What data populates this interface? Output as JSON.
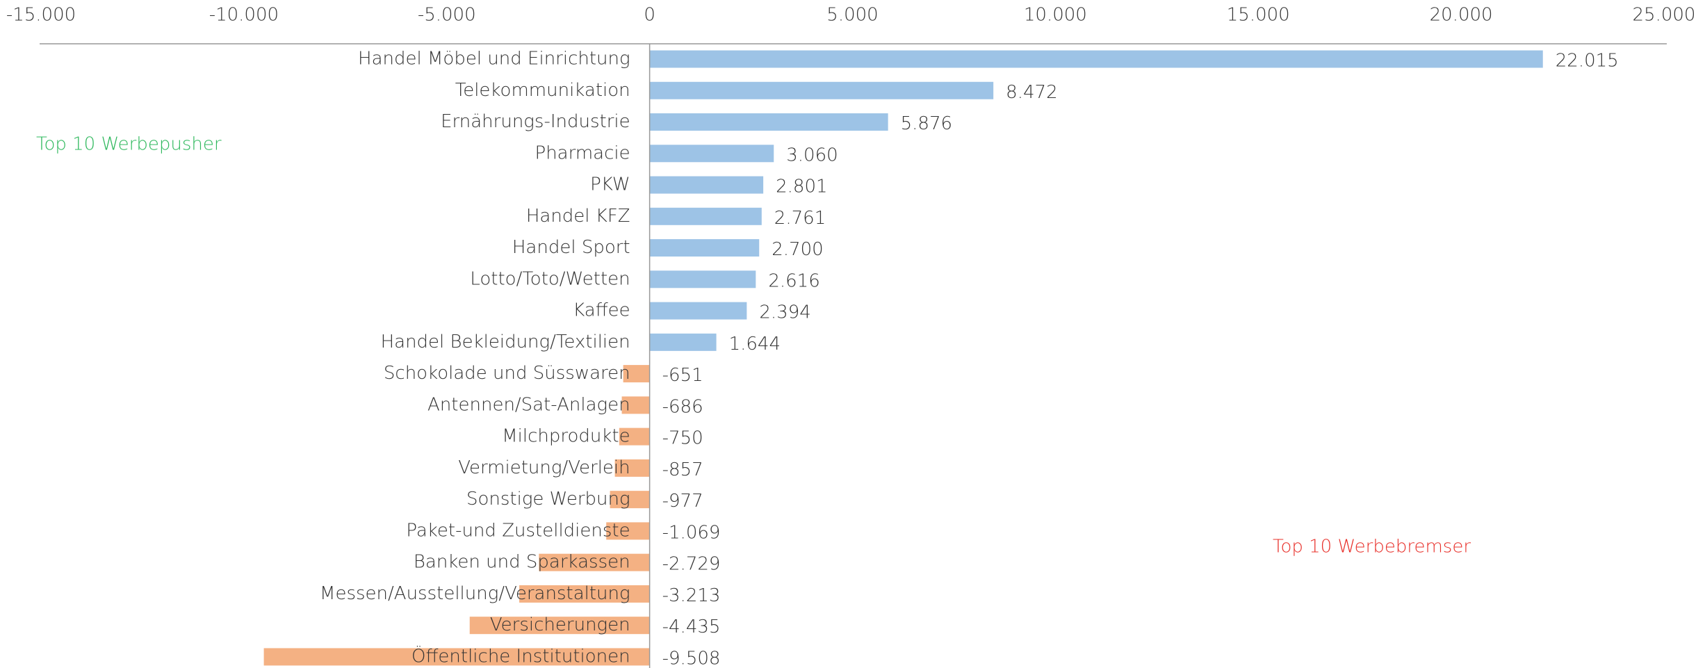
{
  "chart_data": {
    "type": "hbar",
    "categories": [
      "Handel Möbel und Einrichtung",
      "Telekommunikation",
      "Ernährungs-Industrie",
      "Pharmacie",
      "PKW",
      "Handel KFZ",
      "Handel Sport",
      "Lotto/Toto/Wetten",
      "Kaffee",
      "Handel Bekleidung/Textilien",
      "Schokolade und Süsswaren",
      "Antennen/Sat-Anlagen",
      "Milchprodukte",
      "Vermietung/Verleih",
      "Sonstige Werbung",
      "Paket-und Zustelldienste",
      "Banken und Sparkassen",
      "Messen/Ausstellung/Veranstaltung",
      "Versicherungen",
      "Öffentliche Institutionen"
    ],
    "values": [
      22015,
      8472,
      5876,
      3060,
      2801,
      2761,
      2700,
      2616,
      2394,
      1644,
      -651,
      -686,
      -750,
      -857,
      -977,
      -1069,
      -2729,
      -3213,
      -4435,
      -9508
    ],
    "value_labels": [
      "22.015",
      "8.472",
      "5.876",
      "3.060",
      "2.801",
      "2.761",
      "2.700",
      "2.616",
      "2.394",
      "1.644",
      "-651",
      "-686",
      "-750",
      "-857",
      "-977",
      "-1.069",
      "-2.729",
      "-3.213",
      "-4.435",
      "-9.508"
    ],
    "colors": {
      "positive": "#9dc3e6",
      "negative": "#f4b183"
    },
    "xlim": [
      -15000,
      25000
    ],
    "xticks": [
      {
        "value": -15000,
        "label": "-15.000"
      },
      {
        "value": -10000,
        "label": "-10.000"
      },
      {
        "value": -5000,
        "label": "-5.000"
      },
      0,
      {
        "value": 5000,
        "label": "5.000"
      },
      {
        "value": 10000,
        "label": "10.000"
      },
      {
        "value": 15000,
        "label": "15.000"
      },
      {
        "value": 20000,
        "label": "20.000"
      },
      {
        "value": 25000,
        "label": "25.000"
      }
    ],
    "annotations": [
      {
        "text": "Top 10 Werbepusher",
        "color": "#2eb85c"
      },
      {
        "text": "Top 10 Werbebremser",
        "color": "#e8302a"
      }
    ]
  }
}
